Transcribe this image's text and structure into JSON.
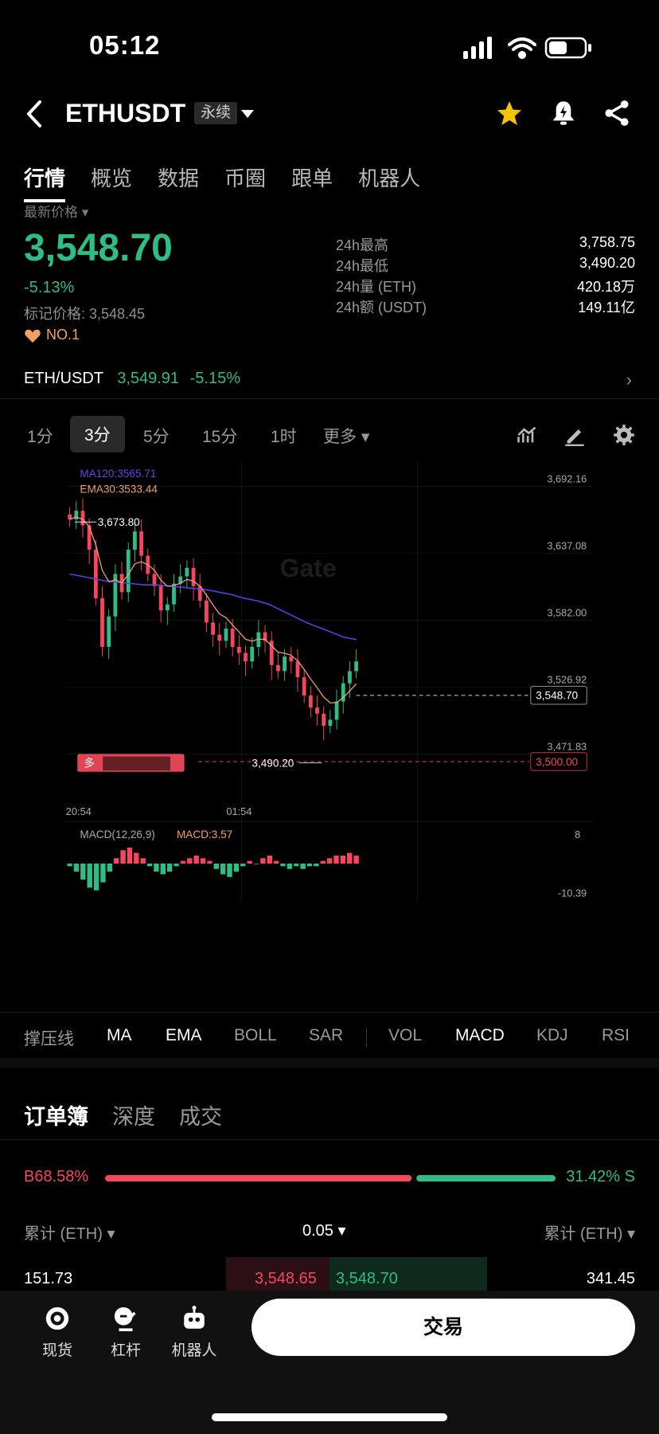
{
  "status": {
    "time": "05:12"
  },
  "header": {
    "pair": "ETHUSDT",
    "contract_type": "永续"
  },
  "tabs": [
    "行情",
    "概览",
    "数据",
    "币圈",
    "跟单",
    "机器人"
  ],
  "price": {
    "label": "最新价格",
    "last": "3,548.70",
    "change": "-5.13%",
    "mark": "标记价格: 3,548.45",
    "rank": "NO.1"
  },
  "stats": [
    {
      "label": "24h最高",
      "value": "3,758.75"
    },
    {
      "label": "24h最低",
      "value": "3,490.20"
    },
    {
      "label": "24h量 (ETH)",
      "value": "420.18万"
    },
    {
      "label": "24h额 (USDT)",
      "value": "149.11亿"
    }
  ],
  "spot": {
    "pair": "ETH/USDT",
    "price": "3,549.91",
    "change": "-5.15%"
  },
  "timeframes": [
    "1分",
    "3分",
    "5分",
    "15分",
    "1时",
    "更多"
  ],
  "timeframe_active": 1,
  "chart_data": {
    "type": "candlestick",
    "ma_label": "MA120:3565.71",
    "ema_label": "EMA30:3533.44",
    "watermark": "Gate",
    "y_ticks": [
      "3,692.16",
      "3,637.08",
      "3,582.00",
      "3,526.92",
      "3,471.83"
    ],
    "y_tick_values": [
      3692.16,
      3637.08,
      3582.0,
      3526.92,
      3471.83
    ],
    "x_ticks": [
      "20:54",
      "01:54"
    ],
    "high_label": "3,673.80",
    "low_label": "3,490.20",
    "current_price": "3,548.70",
    "order_line": "3,500.00",
    "position_tag": "多",
    "closes": [
      3665,
      3672,
      3660,
      3640,
      3600,
      3560,
      3585,
      3620,
      3605,
      3640,
      3655,
      3635,
      3620,
      3610,
      3590,
      3595,
      3612,
      3618,
      3625,
      3610,
      3598,
      3580,
      3570,
      3565,
      3575,
      3560,
      3555,
      3548,
      3560,
      3572,
      3565,
      3545,
      3540,
      3552,
      3548,
      3535,
      3520,
      3510,
      3505,
      3495,
      3500,
      3515,
      3530,
      3540,
      3548
    ],
    "ma120": [
      3620,
      3618,
      3616,
      3614,
      3613,
      3612,
      3611,
      3611,
      3610,
      3609,
      3608,
      3607,
      3605,
      3603,
      3600,
      3598,
      3595,
      3590,
      3585,
      3580,
      3576,
      3572,
      3568,
      3566
    ],
    "macd_label": "MACD(12,26,9)",
    "macd_value": "MACD:3.57",
    "macd_max": "8",
    "macd_min": "-10.39",
    "macd_hist": [
      -1,
      -3,
      -6,
      -9,
      -10,
      -7,
      -3,
      2,
      5,
      6,
      4,
      2,
      -1,
      -3,
      -4,
      -3,
      -1,
      1,
      2,
      3,
      2,
      1,
      -2,
      -4,
      -5,
      -3,
      -1,
      1,
      0,
      2,
      3,
      1,
      -1,
      -2,
      -1,
      -2,
      -1,
      -1,
      1,
      2,
      3,
      3,
      4,
      3
    ]
  },
  "indicators": [
    "撑压线",
    "MA",
    "EMA",
    "BOLL",
    "SAR",
    "VOL",
    "MACD",
    "KDJ",
    "RSI"
  ],
  "indicators_on": [
    1,
    2,
    6
  ],
  "orderbook": {
    "tabs": [
      "订单簿",
      "深度",
      "成交"
    ],
    "buy_ratio": "68.58%",
    "sell_ratio": "31.42%",
    "buy_fraction": 0.6858,
    "b_label": "B",
    "s_label": "S",
    "header_left": "累计 (ETH)",
    "header_mid": "0.05",
    "header_right": "累计 (ETH)",
    "row": {
      "bid_total": "151.73",
      "bid": "3,548.65",
      "ask": "3,548.70",
      "ask_total": "341.45"
    }
  },
  "bottom_nav": [
    {
      "label": "现货",
      "icon": "spot-icon"
    },
    {
      "label": "杠杆",
      "icon": "margin-icon"
    },
    {
      "label": "机器人",
      "icon": "robot-icon"
    }
  ],
  "trade_button": "交易"
}
